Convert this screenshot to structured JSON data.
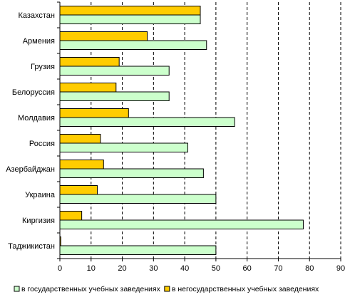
{
  "chart_data": {
    "type": "bar",
    "orientation": "horizontal",
    "categories": [
      "Казахстан",
      "Армения",
      "Грузия",
      "Белоруссия",
      "Молдавия",
      "Россия",
      "Азербайджан",
      "Украина",
      "Киргизия",
      "Таджикистан"
    ],
    "series": [
      {
        "name": "в негосударственных учебных заведениях",
        "color": "#FFCC00",
        "values": [
          45,
          28,
          19,
          18,
          22,
          13,
          14,
          12,
          7,
          0.3
        ]
      },
      {
        "name": "в государственных учебных заведениях",
        "color": "#CCFFCC",
        "values": [
          45,
          47,
          35,
          35,
          56,
          41,
          46,
          50,
          78,
          50
        ]
      }
    ],
    "x_ticks": [
      "0",
      "10",
      "20",
      "30",
      "40",
      "50",
      "60",
      "70",
      "80",
      "90"
    ],
    "xlim": [
      0,
      90
    ],
    "grid": "vertical-dashed",
    "legend": [
      {
        "label": "в государственных учебных заведениях",
        "color": "#CCFFCC"
      },
      {
        "label": "в негосударственных учебных заведениях",
        "color": "#FFCC00"
      }
    ],
    "legend_position": "bottom"
  }
}
